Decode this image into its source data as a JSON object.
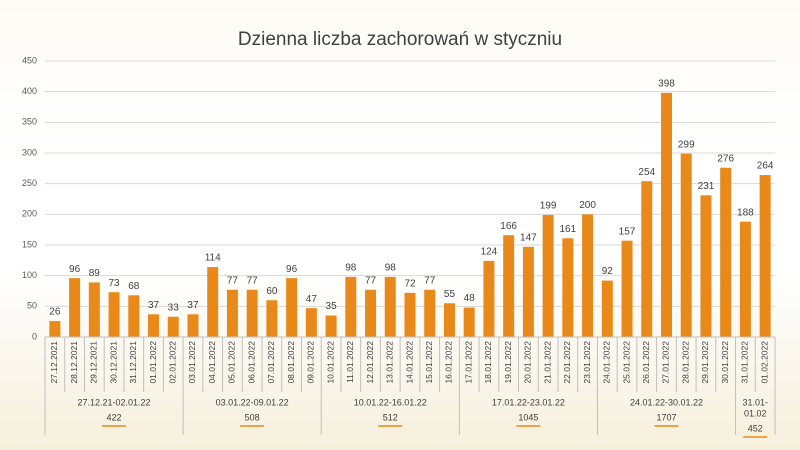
{
  "chart_data": {
    "type": "bar",
    "title": "Dzienna liczba zachorowań w styczniu",
    "color": "#e8891a",
    "ylim": [
      0,
      450
    ],
    "yticks": [
      0,
      50,
      100,
      150,
      200,
      250,
      300,
      350,
      400,
      450
    ],
    "grid": true,
    "groups": [
      {
        "label": [
          "27.12.21-02.01.22"
        ],
        "total": 422,
        "categories": [
          "27.12.2021",
          "28.12.2021",
          "29.12.2021",
          "30.12.2021",
          "31.12.2021",
          "01.01.2022",
          "02.01.2022"
        ],
        "values": [
          26,
          96,
          89,
          73,
          68,
          37,
          33
        ]
      },
      {
        "label": [
          "03.01.22-09.01.22"
        ],
        "total": 508,
        "categories": [
          "03.01.2022",
          "04.01.2022",
          "05.01.2022",
          "06.01.2022",
          "07.01.2022",
          "08.01.2022",
          "09.01.2022"
        ],
        "values": [
          37,
          114,
          77,
          77,
          60,
          96,
          47
        ]
      },
      {
        "label": [
          "10.01.22-16.01.22"
        ],
        "total": 512,
        "categories": [
          "10.01.2022",
          "11.01.2022",
          "12.01.2022",
          "13.01.2022",
          "14.01.2022",
          "15.01.2022",
          "16.01.2022"
        ],
        "values": [
          35,
          98,
          77,
          98,
          72,
          77,
          55
        ]
      },
      {
        "label": [
          "17.01.22-23.01.22"
        ],
        "total": 1045,
        "categories": [
          "17.01.2022",
          "18.01.2022",
          "19.01.2022",
          "20.01.2022",
          "21.01.2022",
          "22.01.2022",
          "23.01.2022"
        ],
        "values": [
          48,
          124,
          166,
          147,
          199,
          161,
          200
        ]
      },
      {
        "label": [
          "24.01.22-30.01.22"
        ],
        "total": 1707,
        "categories": [
          "24.01.2022",
          "25.01.2022",
          "26.01.2022",
          "27.01.2022",
          "28.01.2022",
          "29.01.2022",
          "30.01.2022"
        ],
        "values": [
          92,
          157,
          254,
          398,
          299,
          231,
          276
        ]
      },
      {
        "label": [
          "31.01-",
          "01.02"
        ],
        "total": 452,
        "categories": [
          "31.01.2022",
          "01.02.2022"
        ],
        "values": [
          188,
          264
        ]
      }
    ]
  }
}
